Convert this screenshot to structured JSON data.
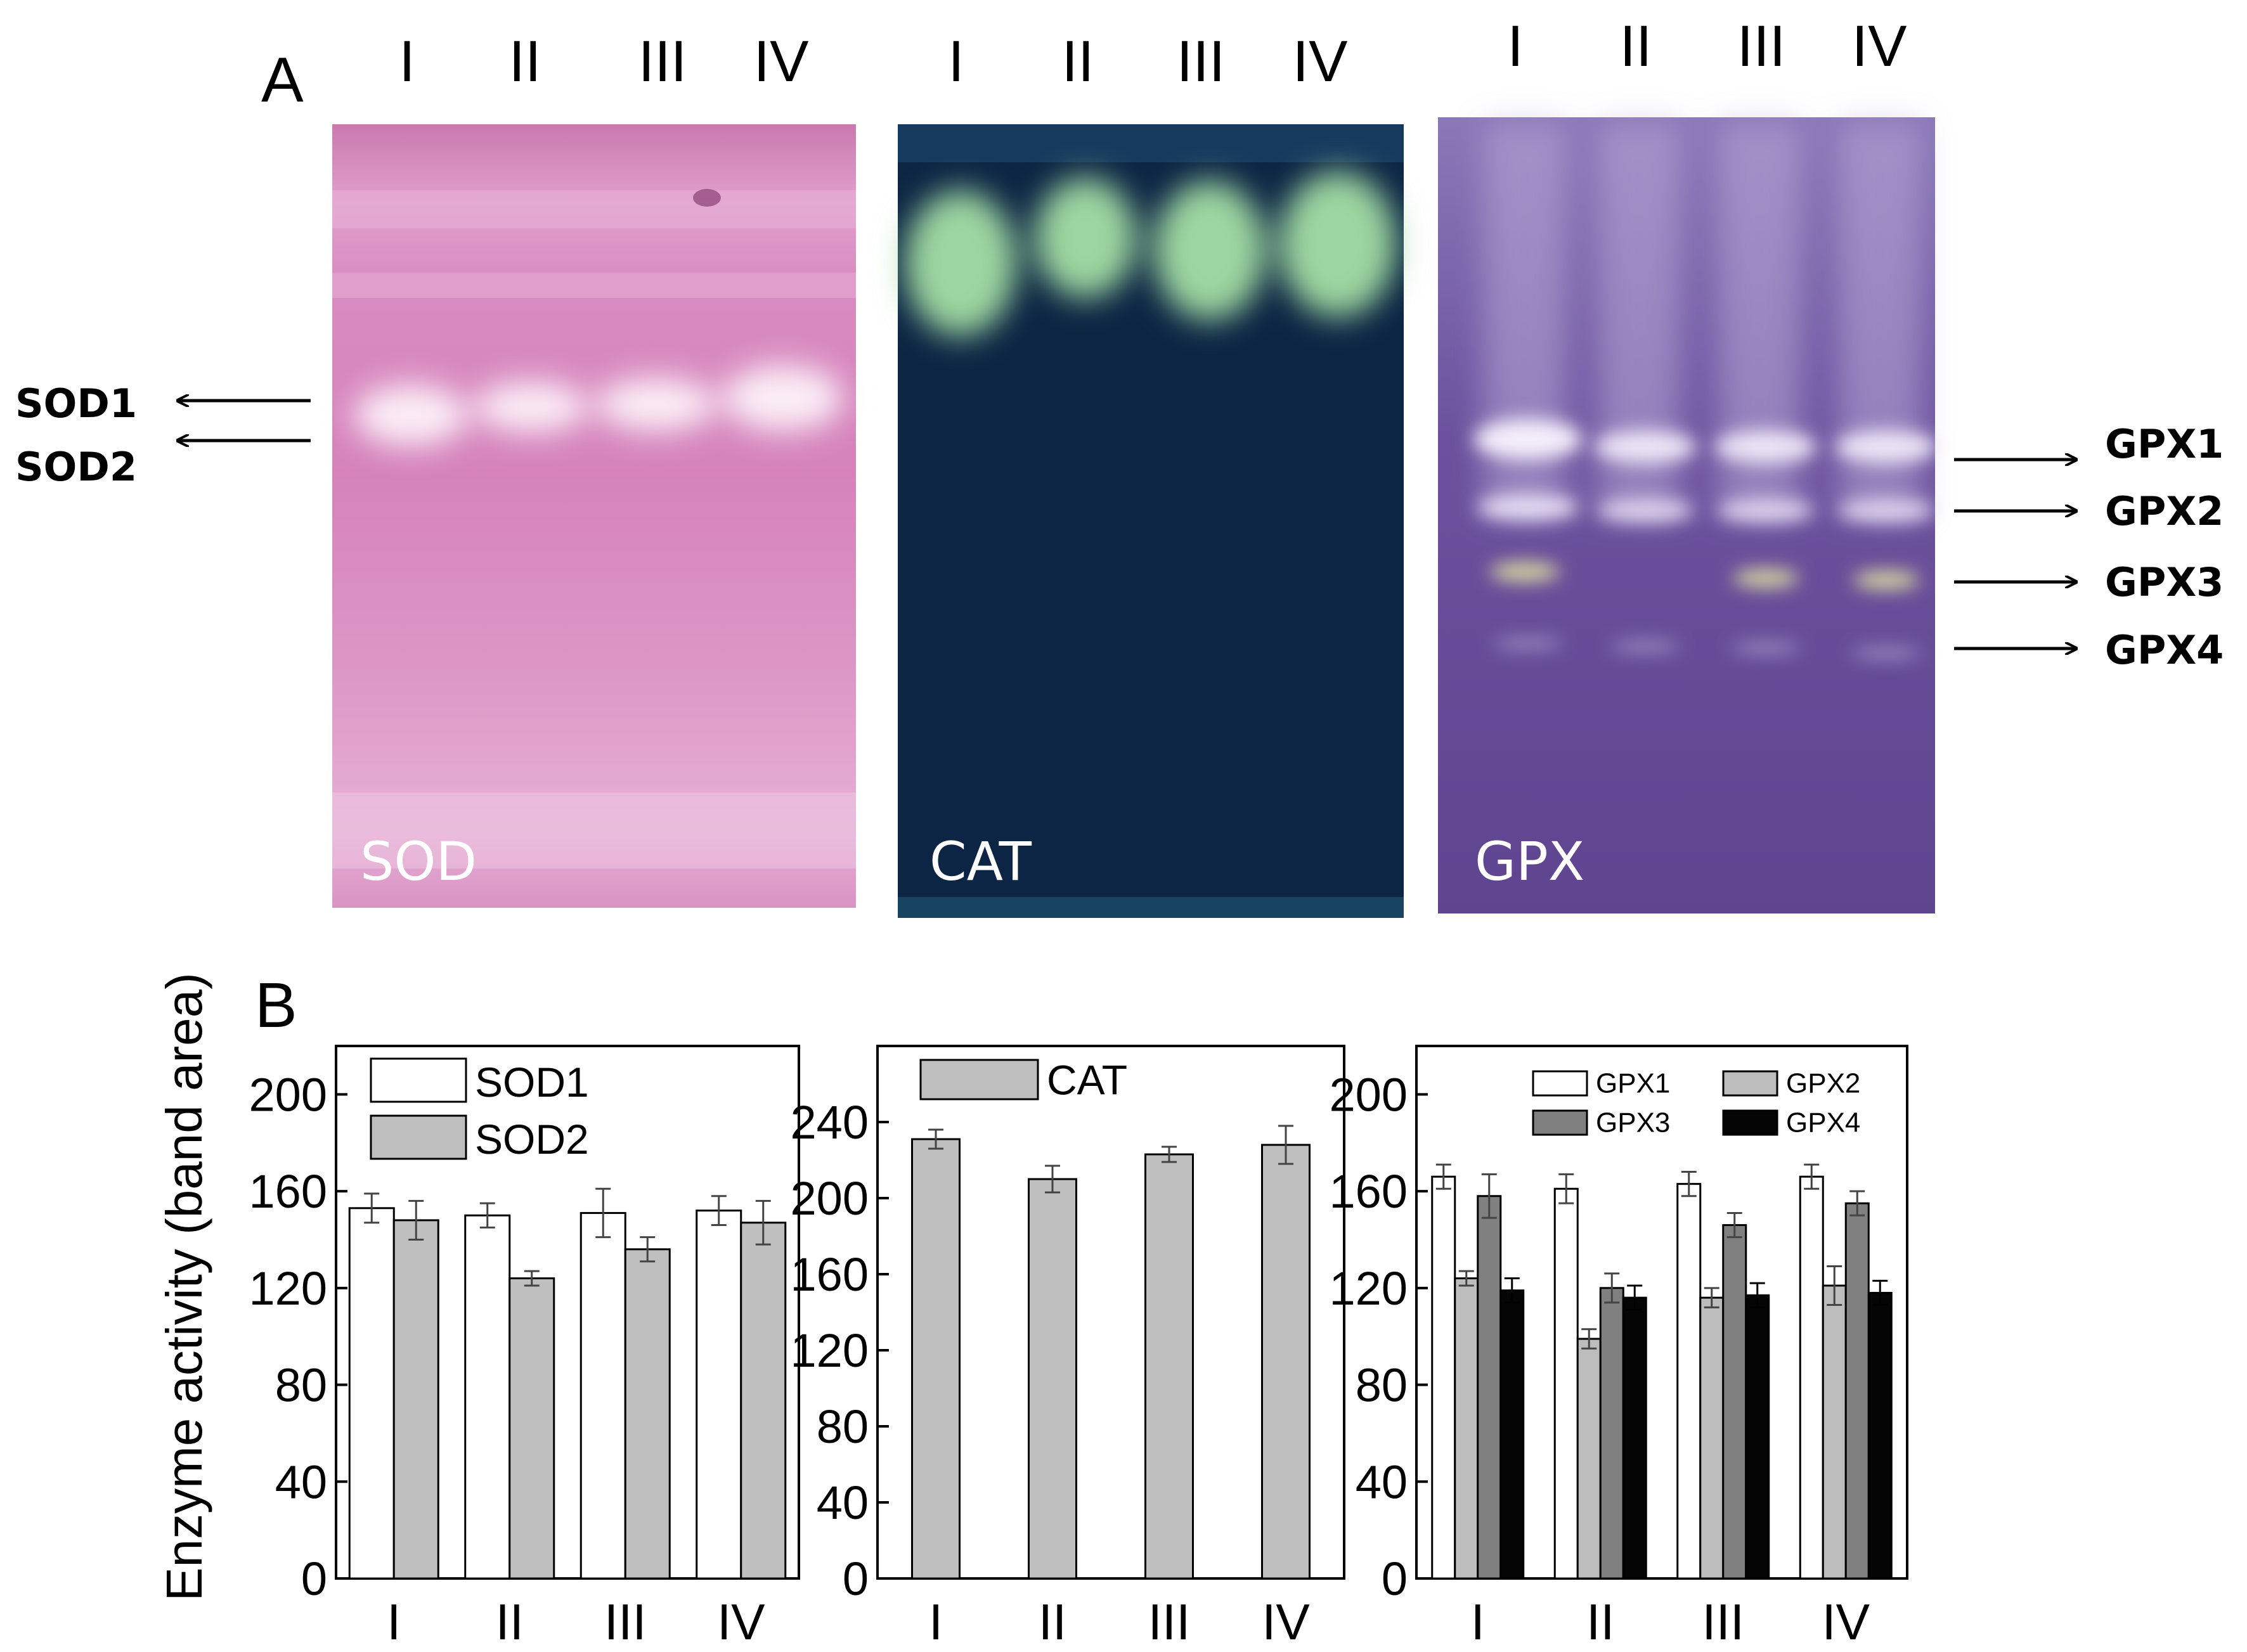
{
  "panel_a": {
    "label": "A",
    "lanes": [
      "I",
      "II",
      "III",
      "IV"
    ],
    "gels": [
      {
        "label": "SOD",
        "color": "#d889c0"
      },
      {
        "label": "CAT",
        "color": "#0c2544"
      },
      {
        "label": "GPX",
        "color": "#6a4f9a"
      }
    ],
    "left_markers": [
      "SOD1",
      "SOD2"
    ],
    "right_markers": [
      "GPX1",
      "GPX2",
      "GPX3",
      "GPX4"
    ]
  },
  "panel_b": {
    "label": "B",
    "ylabel": "Enzyme activity (band area)"
  },
  "chart_data": [
    {
      "type": "bar",
      "categories": [
        "I",
        "II",
        "III",
        "IV"
      ],
      "ylim": [
        0,
        220
      ],
      "yticks": [
        0,
        40,
        80,
        120,
        160,
        200
      ],
      "series": [
        {
          "name": "SOD1",
          "color": "#ffffff",
          "values": [
            153,
            150,
            151,
            152
          ],
          "errors": [
            6,
            5,
            10,
            6
          ]
        },
        {
          "name": "SOD2",
          "color": "#bfbfbf",
          "values": [
            148,
            124,
            136,
            147
          ],
          "errors": [
            8,
            3,
            5,
            9
          ]
        }
      ]
    },
    {
      "type": "bar",
      "categories": [
        "I",
        "II",
        "III",
        "IV"
      ],
      "ylim": [
        0,
        280
      ],
      "yticks": [
        0,
        40,
        80,
        120,
        160,
        200,
        240
      ],
      "series": [
        {
          "name": "CAT",
          "color": "#bfbfbf",
          "values": [
            231,
            210,
            223,
            228
          ],
          "errors": [
            5,
            7,
            4,
            10
          ]
        }
      ]
    },
    {
      "type": "bar",
      "categories": [
        "I",
        "II",
        "III",
        "IV"
      ],
      "ylim": [
        0,
        220
      ],
      "yticks": [
        0,
        40,
        80,
        120,
        160,
        200
      ],
      "series": [
        {
          "name": "GPX1",
          "color": "#ffffff",
          "values": [
            166,
            161,
            163,
            166
          ],
          "errors": [
            5,
            6,
            5,
            5
          ]
        },
        {
          "name": "GPX2",
          "color": "#bdbdbd",
          "values": [
            124,
            99,
            116,
            121
          ],
          "errors": [
            3,
            4,
            4,
            8
          ]
        },
        {
          "name": "GPX3",
          "color": "#808080",
          "values": [
            158,
            120,
            146,
            155
          ],
          "errors": [
            9,
            6,
            5,
            5
          ]
        },
        {
          "name": "GPX4",
          "color": "#050505",
          "values": [
            119,
            116,
            117,
            118
          ],
          "errors": [
            5,
            5,
            5,
            5
          ]
        }
      ]
    }
  ]
}
